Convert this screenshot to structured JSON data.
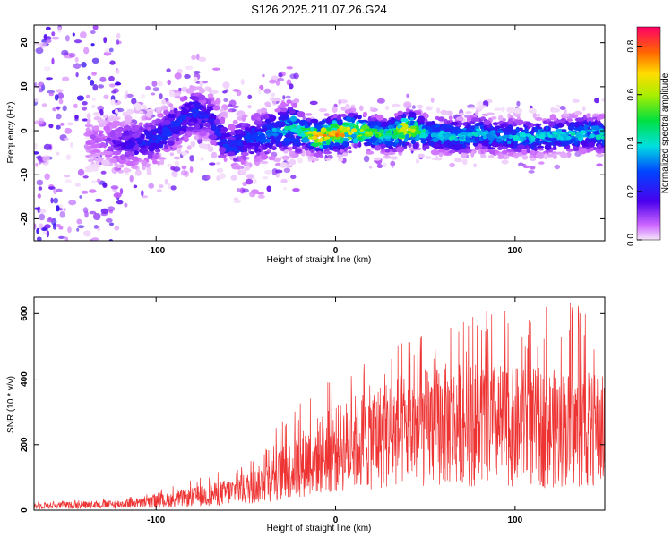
{
  "title": "S126.2025.211.07.26.G24",
  "chart_data": [
    {
      "type": "heatmap",
      "xlabel": "Height of straight line (km)",
      "ylabel": "Frequency (Hz)",
      "xlim": [
        -168,
        150
      ],
      "ylim": [
        -25,
        24
      ],
      "xticks": [
        "-100",
        "0",
        "100"
      ],
      "xtick_values": [
        -100,
        0,
        100
      ],
      "yticks": [
        "-20",
        "-10",
        "0",
        "10",
        "20"
      ],
      "ytick_values": [
        -20,
        -10,
        0,
        10,
        20
      ],
      "grid": false,
      "colorbar": {
        "label": "Normalized spectral amplitude",
        "range": [
          0,
          0.88
        ],
        "ticks": [
          "0.0",
          "0.2",
          "0.4",
          "0.6",
          "0.8"
        ],
        "tick_values": [
          0,
          0.2,
          0.4,
          0.6,
          0.8
        ],
        "colormap": "rainbow (magenta-blue-cyan-green-yellow-red)"
      },
      "ridge": {
        "description": "frequency trace of peak spectral amplitude",
        "x": [
          -168,
          -130,
          -120,
          -110,
          -100,
          -90,
          -80,
          -70,
          -60,
          -50,
          -40,
          -30,
          -25,
          -20,
          -10,
          0,
          10,
          20,
          30,
          40,
          50,
          60,
          70,
          80,
          90,
          100,
          110,
          120,
          130,
          140,
          150
        ],
        "y": [
          -2,
          -2,
          -3,
          -3,
          -2,
          1,
          4,
          3,
          -4,
          -2,
          -1,
          0,
          1,
          0,
          -1.5,
          -0.5,
          0,
          -0.5,
          -1,
          0.5,
          -0.5,
          -1,
          -1.5,
          -0.5,
          -1.5,
          -1.5,
          -1.5,
          -1,
          -1,
          -0.5,
          -1
        ],
        "peak_amplitude": [
          0.1,
          0.1,
          0.2,
          0.25,
          0.3,
          0.3,
          0.3,
          0.25,
          0.3,
          0.3,
          0.35,
          0.45,
          0.5,
          0.5,
          0.85,
          0.85,
          0.75,
          0.65,
          0.55,
          0.85,
          0.45,
          0.45,
          0.45,
          0.45,
          0.4,
          0.45,
          0.45,
          0.45,
          0.45,
          0.5,
          0.45
        ]
      }
    },
    {
      "type": "line",
      "xlabel": "Height of straight line (km)",
      "ylabel": "SNR (10 * v/v)",
      "xlim": [
        -168,
        150
      ],
      "ylim": [
        0,
        650
      ],
      "xticks": [
        "-100",
        "0",
        "100"
      ],
      "xtick_values": [
        -100,
        0,
        100
      ],
      "yticks": [
        "0",
        "200",
        "400",
        "600"
      ],
      "ytick_values": [
        0,
        200,
        400,
        600
      ],
      "grid": false,
      "line_color": "#ee3333",
      "envelope": {
        "x": [
          -168,
          -150,
          -130,
          -110,
          -90,
          -70,
          -50,
          -40,
          -30,
          -20,
          -10,
          0,
          10,
          20,
          40,
          60,
          80,
          100,
          120,
          140,
          150
        ],
        "mean": [
          14,
          16,
          18,
          22,
          35,
          50,
          70,
          90,
          120,
          150,
          180,
          200,
          220,
          240,
          265,
          280,
          285,
          275,
          270,
          265,
          260
        ],
        "max": [
          28,
          30,
          35,
          45,
          75,
          110,
          150,
          200,
          280,
          340,
          390,
          420,
          440,
          470,
          520,
          590,
          630,
          600,
          630,
          640,
          580
        ]
      }
    }
  ]
}
